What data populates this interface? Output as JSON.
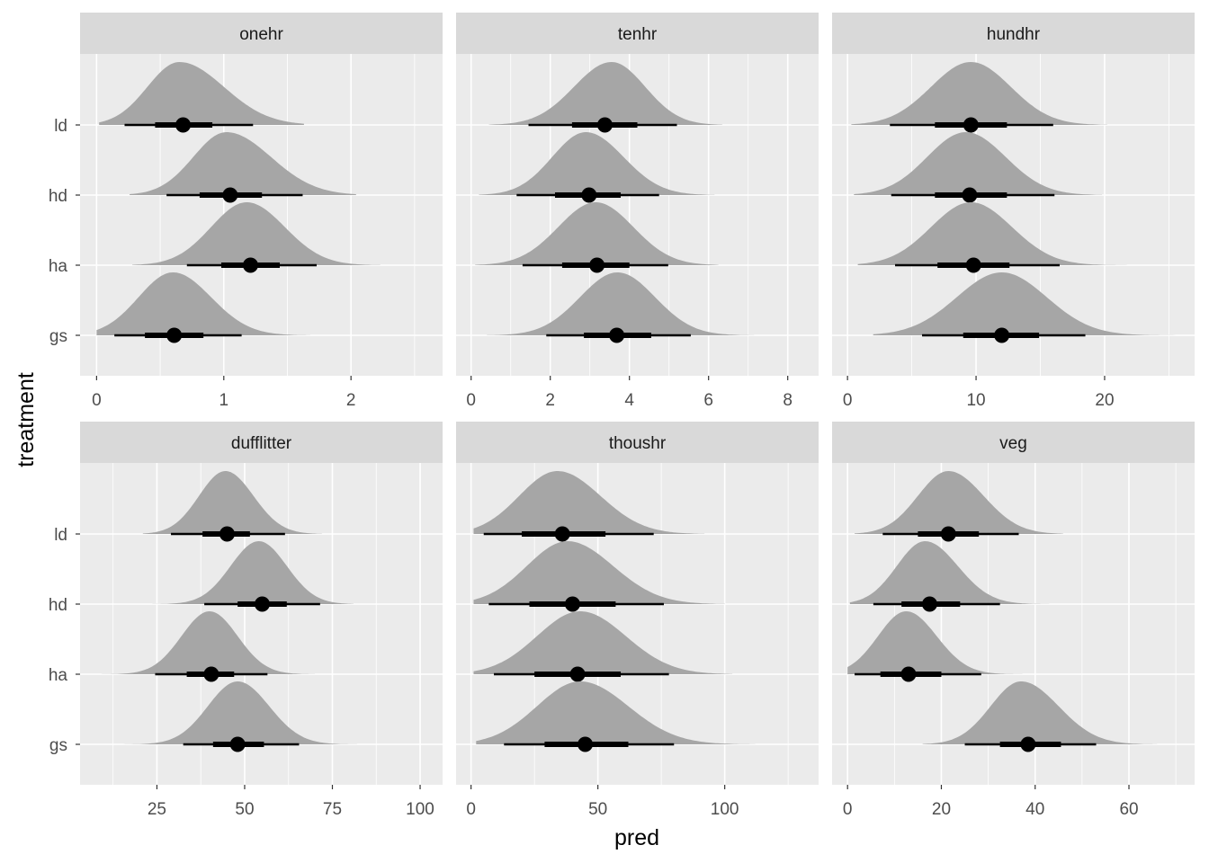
{
  "axes": {
    "xlabel": "pred",
    "ylabel": "treatment"
  },
  "colors": {
    "panel_bg": "#ebebeb",
    "strip_bg": "#d9d9d9",
    "grid": "#ffffff",
    "density_fill": "#a6a6a6",
    "interval": "#000000"
  },
  "chart_data": [
    {
      "type": "halfeye",
      "title": "onehr",
      "categories": [
        "ld",
        "hd",
        "ha",
        "gs"
      ],
      "xlim": [
        -0.13,
        2.72
      ],
      "xticks": [
        0,
        1,
        2
      ],
      "series": [
        {
          "category": "ld",
          "support": [
            0.02,
            1.63
          ],
          "peak": 0.65,
          "left_sd": 0.25,
          "right_sd": 0.35,
          "median": 0.68,
          "q66": [
            0.46,
            0.91
          ],
          "q95": [
            0.22,
            1.23
          ]
        },
        {
          "category": "hd",
          "support": [
            0.26,
            2.04
          ],
          "peak": 1.02,
          "left_sd": 0.26,
          "right_sd": 0.35,
          "median": 1.05,
          "q66": [
            0.81,
            1.3
          ],
          "q95": [
            0.55,
            1.62
          ]
        },
        {
          "category": "ha",
          "support": [
            0.28,
            2.23
          ],
          "peak": 1.18,
          "left_sd": 0.28,
          "right_sd": 0.3,
          "median": 1.21,
          "q66": [
            0.98,
            1.44
          ],
          "q95": [
            0.71,
            1.73
          ]
        },
        {
          "category": "gs",
          "support": [
            0.0,
            1.68
          ],
          "peak": 0.6,
          "left_sd": 0.27,
          "right_sd": 0.3,
          "median": 0.61,
          "q66": [
            0.38,
            0.84
          ],
          "q95": [
            0.14,
            1.14
          ]
        }
      ]
    },
    {
      "type": "halfeye",
      "title": "tenhr",
      "categories": [
        "ld",
        "hd",
        "ha",
        "gs"
      ],
      "xlim": [
        -0.38,
        8.78
      ],
      "xticks": [
        0,
        2,
        4,
        6,
        8
      ],
      "series": [
        {
          "category": "ld",
          "support": [
            0.45,
            6.35
          ],
          "peak": 3.55,
          "left_sd": 0.95,
          "right_sd": 0.85,
          "median": 3.38,
          "q66": [
            2.55,
            4.2
          ],
          "q95": [
            1.45,
            5.2
          ]
        },
        {
          "category": "hd",
          "support": [
            0.2,
            6.15
          ],
          "peak": 2.9,
          "left_sd": 0.85,
          "right_sd": 0.95,
          "median": 2.98,
          "q66": [
            2.12,
            3.78
          ],
          "q95": [
            1.15,
            4.75
          ]
        },
        {
          "category": "ha",
          "support": [
            0.1,
            6.25
          ],
          "peak": 3.15,
          "left_sd": 0.95,
          "right_sd": 0.95,
          "median": 3.18,
          "q66": [
            2.3,
            4.0
          ],
          "q95": [
            1.3,
            4.98
          ]
        },
        {
          "category": "gs",
          "support": [
            0.4,
            7.15
          ],
          "peak": 3.7,
          "left_sd": 0.95,
          "right_sd": 0.95,
          "median": 3.68,
          "q66": [
            2.85,
            4.55
          ],
          "q95": [
            1.9,
            5.55
          ]
        }
      ]
    },
    {
      "type": "halfeye",
      "title": "hundhr",
      "categories": [
        "ld",
        "hd",
        "ha",
        "gs"
      ],
      "xlim": [
        -1.2,
        27.0
      ],
      "xticks": [
        0,
        10,
        20
      ],
      "series": [
        {
          "category": "ld",
          "support": [
            0.3,
            20.2
          ],
          "peak": 9.6,
          "left_sd": 3.1,
          "right_sd": 3.1,
          "median": 9.6,
          "q66": [
            6.8,
            12.4
          ],
          "q95": [
            3.3,
            16.0
          ]
        },
        {
          "category": "hd",
          "support": [
            0.5,
            19.8
          ],
          "peak": 9.2,
          "left_sd": 3.0,
          "right_sd": 3.1,
          "median": 9.5,
          "q66": [
            6.8,
            12.4
          ],
          "q95": [
            3.4,
            16.1
          ]
        },
        {
          "category": "ha",
          "support": [
            0.8,
            21.8
          ],
          "peak": 9.6,
          "left_sd": 3.1,
          "right_sd": 3.2,
          "median": 9.8,
          "q66": [
            7.0,
            12.6
          ],
          "q95": [
            3.7,
            16.5
          ]
        },
        {
          "category": "gs",
          "support": [
            2.0,
            25.5
          ],
          "peak": 12.0,
          "left_sd": 3.5,
          "right_sd": 3.5,
          "median": 12.0,
          "q66": [
            9.0,
            14.9
          ],
          "q95": [
            5.8,
            18.5
          ]
        }
      ]
    },
    {
      "type": "halfeye",
      "title": "dufflitter",
      "categories": [
        "ld",
        "hd",
        "ha",
        "gs"
      ],
      "xlim": [
        3.1,
        106.4
      ],
      "xticks": [
        25,
        50,
        75,
        100
      ],
      "series": [
        {
          "category": "ld",
          "support": [
            21.0,
            72.0
          ],
          "peak": 44.5,
          "left_sd": 7.5,
          "right_sd": 8.0,
          "median": 45.0,
          "q66": [
            38.0,
            51.5
          ],
          "q95": [
            29.0,
            61.5
          ]
        },
        {
          "category": "hd",
          "support": [
            23.0,
            81.0
          ],
          "peak": 54.0,
          "left_sd": 8.0,
          "right_sd": 8.0,
          "median": 55.0,
          "q66": [
            48.0,
            62.0
          ],
          "q95": [
            38.5,
            71.5
          ]
        },
        {
          "category": "ha",
          "support": [
            8.0,
            70.0
          ],
          "peak": 40.0,
          "left_sd": 8.0,
          "right_sd": 8.0,
          "median": 40.5,
          "q66": [
            33.5,
            47.0
          ],
          "q95": [
            24.5,
            56.5
          ]
        },
        {
          "category": "gs",
          "support": [
            12.0,
            82.0
          ],
          "peak": 48.0,
          "left_sd": 8.5,
          "right_sd": 9.0,
          "median": 48.0,
          "q66": [
            41.0,
            55.5
          ],
          "q95": [
            32.5,
            65.5
          ]
        }
      ]
    },
    {
      "type": "halfeye",
      "title": "thoushr",
      "categories": [
        "ld",
        "hd",
        "ha",
        "gs"
      ],
      "xlim": [
        -5.9,
        137.0
      ],
      "xticks": [
        0,
        50,
        100
      ],
      "series": [
        {
          "category": "ld",
          "support": [
            1.0,
            92.0
          ],
          "peak": 34.0,
          "left_sd": 15.0,
          "right_sd": 17.0,
          "median": 36.0,
          "q66": [
            20.0,
            53.0
          ],
          "q95": [
            5.0,
            72.0
          ]
        },
        {
          "category": "hd",
          "support": [
            1.0,
            100.0
          ],
          "peak": 38.0,
          "left_sd": 16.0,
          "right_sd": 18.0,
          "median": 40.0,
          "q66": [
            23.0,
            57.0
          ],
          "q95": [
            7.0,
            76.0
          ]
        },
        {
          "category": "ha",
          "support": [
            1.0,
            103.0
          ],
          "peak": 43.0,
          "left_sd": 17.0,
          "right_sd": 18.0,
          "median": 42.0,
          "q66": [
            25.0,
            59.0
          ],
          "q95": [
            9.0,
            78.0
          ]
        },
        {
          "category": "gs",
          "support": [
            2.0,
            112.0
          ],
          "peak": 43.0,
          "left_sd": 17.0,
          "right_sd": 19.0,
          "median": 45.0,
          "q66": [
            29.0,
            62.0
          ],
          "q95": [
            13.0,
            80.0
          ]
        }
      ]
    },
    {
      "type": "halfeye",
      "title": "veg",
      "categories": [
        "ld",
        "hd",
        "ha",
        "gs"
      ],
      "xlim": [
        -3.3,
        74.0
      ],
      "xticks": [
        0,
        20,
        40,
        60
      ],
      "series": [
        {
          "category": "ld",
          "support": [
            1.5,
            46.0
          ],
          "peak": 21.5,
          "left_sd": 6.5,
          "right_sd": 7.5,
          "median": 21.5,
          "q66": [
            15.0,
            28.0
          ],
          "q95": [
            7.5,
            36.5
          ]
        },
        {
          "category": "hd",
          "support": [
            0.5,
            43.0
          ],
          "peak": 16.5,
          "left_sd": 6.0,
          "right_sd": 7.0,
          "median": 17.5,
          "q66": [
            11.5,
            24.0
          ],
          "q95": [
            5.5,
            32.5
          ]
        },
        {
          "category": "ha",
          "support": [
            0.0,
            40.5
          ],
          "peak": 12.5,
          "left_sd": 6.0,
          "right_sd": 6.5,
          "median": 13.0,
          "q66": [
            7.0,
            20.0
          ],
          "q95": [
            1.5,
            28.5
          ]
        },
        {
          "category": "gs",
          "support": [
            16.0,
            66.0
          ],
          "peak": 37.0,
          "left_sd": 6.5,
          "right_sd": 8.0,
          "median": 38.5,
          "q66": [
            32.5,
            45.5
          ],
          "q95": [
            25.0,
            53.0
          ]
        }
      ]
    }
  ]
}
